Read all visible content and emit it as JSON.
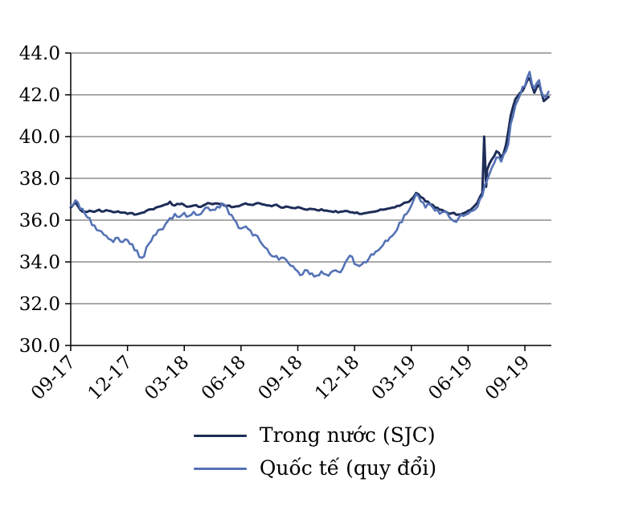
{
  "chart_data": {
    "type": "line",
    "title": "",
    "xlabel": "",
    "ylabel": "",
    "x_unit": "months since 2017-09",
    "xlim": [
      0,
      25.4
    ],
    "ylim": [
      30,
      44
    ],
    "y_ticks": [
      30,
      32,
      34,
      36,
      38,
      40,
      42,
      44
    ],
    "y_tick_labels": [
      "30.0",
      "32.0",
      "34.0",
      "36.0",
      "38.0",
      "40.0",
      "42.0",
      "44.0"
    ],
    "x_ticks": [
      0,
      3,
      6,
      9,
      12,
      15,
      18,
      21,
      24
    ],
    "x_tick_labels": [
      "09-17",
      "12-17",
      "03-18",
      "06-18",
      "09-18",
      "12-18",
      "03-19",
      "06-19",
      "09-19"
    ],
    "grid": "horizontal",
    "grid_color": "#555555",
    "axis_color": "#000000",
    "legend_position": "bottom",
    "series": [
      {
        "name": "Trong nước (SJC)",
        "color": "#1e2d58",
        "width": 3,
        "noise": 0.05,
        "points": [
          [
            0,
            36.6
          ],
          [
            0.25,
            36.85
          ],
          [
            0.5,
            36.5
          ],
          [
            0.75,
            36.4
          ],
          [
            1,
            36.45
          ],
          [
            1.25,
            36.4
          ],
          [
            1.5,
            36.5
          ],
          [
            1.75,
            36.42
          ],
          [
            2,
            36.45
          ],
          [
            2.25,
            36.38
          ],
          [
            2.5,
            36.42
          ],
          [
            2.75,
            36.36
          ],
          [
            3,
            36.3
          ],
          [
            3.25,
            36.34
          ],
          [
            3.5,
            36.28
          ],
          [
            3.75,
            36.35
          ],
          [
            4,
            36.45
          ],
          [
            4.25,
            36.52
          ],
          [
            4.5,
            36.6
          ],
          [
            4.75,
            36.66
          ],
          [
            5,
            36.75
          ],
          [
            5.25,
            36.88
          ],
          [
            5.5,
            36.7
          ],
          [
            5.75,
            36.76
          ],
          [
            6,
            36.72
          ],
          [
            6.25,
            36.65
          ],
          [
            6.5,
            36.7
          ],
          [
            6.75,
            36.64
          ],
          [
            7,
            36.7
          ],
          [
            7.25,
            36.82
          ],
          [
            7.5,
            36.76
          ],
          [
            7.75,
            36.8
          ],
          [
            8,
            36.78
          ],
          [
            8.25,
            36.68
          ],
          [
            8.5,
            36.62
          ],
          [
            8.75,
            36.66
          ],
          [
            9,
            36.72
          ],
          [
            9.25,
            36.8
          ],
          [
            9.5,
            36.74
          ],
          [
            9.75,
            36.78
          ],
          [
            10,
            36.8
          ],
          [
            10.25,
            36.74
          ],
          [
            10.5,
            36.7
          ],
          [
            10.75,
            36.72
          ],
          [
            11,
            36.66
          ],
          [
            11.25,
            36.6
          ],
          [
            11.5,
            36.63
          ],
          [
            11.75,
            36.58
          ],
          [
            12,
            36.62
          ],
          [
            12.25,
            36.55
          ],
          [
            12.5,
            36.5
          ],
          [
            12.75,
            36.53
          ],
          [
            13,
            36.48
          ],
          [
            13.25,
            36.52
          ],
          [
            13.5,
            36.46
          ],
          [
            13.75,
            36.42
          ],
          [
            14,
            36.44
          ],
          [
            14.25,
            36.4
          ],
          [
            14.5,
            36.44
          ],
          [
            14.75,
            36.38
          ],
          [
            15,
            36.34
          ],
          [
            15.25,
            36.3
          ],
          [
            15.5,
            36.33
          ],
          [
            15.75,
            36.37
          ],
          [
            16,
            36.4
          ],
          [
            16.25,
            36.45
          ],
          [
            16.5,
            36.5
          ],
          [
            16.75,
            36.55
          ],
          [
            17,
            36.6
          ],
          [
            17.25,
            36.68
          ],
          [
            17.5,
            36.75
          ],
          [
            17.75,
            36.85
          ],
          [
            18,
            37.0
          ],
          [
            18.25,
            37.3
          ],
          [
            18.5,
            37.1
          ],
          [
            18.75,
            36.9
          ],
          [
            19,
            36.75
          ],
          [
            19.25,
            36.6
          ],
          [
            19.5,
            36.5
          ],
          [
            19.75,
            36.42
          ],
          [
            20,
            36.3
          ],
          [
            20.25,
            36.35
          ],
          [
            20.5,
            36.27
          ],
          [
            20.75,
            36.33
          ],
          [
            21,
            36.45
          ],
          [
            21.25,
            36.6
          ],
          [
            21.5,
            36.85
          ],
          [
            21.75,
            37.3
          ],
          [
            21.85,
            40.0
          ],
          [
            21.95,
            37.6
          ],
          [
            22,
            38.4
          ],
          [
            22.25,
            38.9
          ],
          [
            22.5,
            39.3
          ],
          [
            22.75,
            39.0
          ],
          [
            23,
            39.6
          ],
          [
            23.25,
            41.0
          ],
          [
            23.5,
            41.8
          ],
          [
            23.75,
            42.1
          ],
          [
            24,
            42.4
          ],
          [
            24.25,
            42.8
          ],
          [
            24.5,
            42.1
          ],
          [
            24.75,
            42.5
          ],
          [
            25,
            41.7
          ],
          [
            25.25,
            41.9
          ]
        ]
      },
      {
        "name": "Quốc tế (quy đổi)",
        "color": "#5572b5",
        "width": 2.6,
        "noise": 0.1,
        "points": [
          [
            0,
            36.7
          ],
          [
            0.25,
            36.95
          ],
          [
            0.5,
            36.55
          ],
          [
            0.75,
            36.3
          ],
          [
            1,
            36.1
          ],
          [
            1.25,
            35.75
          ],
          [
            1.5,
            35.5
          ],
          [
            1.75,
            35.3
          ],
          [
            2,
            35.1
          ],
          [
            2.25,
            34.95
          ],
          [
            2.5,
            35.15
          ],
          [
            2.75,
            34.95
          ],
          [
            3,
            35.05
          ],
          [
            3.25,
            34.85
          ],
          [
            3.5,
            34.55
          ],
          [
            3.75,
            34.2
          ],
          [
            4,
            34.7
          ],
          [
            4.25,
            35.0
          ],
          [
            4.5,
            35.3
          ],
          [
            4.75,
            35.55
          ],
          [
            5,
            35.8
          ],
          [
            5.25,
            36.1
          ],
          [
            5.5,
            36.3
          ],
          [
            5.75,
            36.15
          ],
          [
            6,
            36.35
          ],
          [
            6.25,
            36.2
          ],
          [
            6.5,
            36.4
          ],
          [
            6.75,
            36.25
          ],
          [
            7,
            36.45
          ],
          [
            7.25,
            36.6
          ],
          [
            7.5,
            36.5
          ],
          [
            7.75,
            36.65
          ],
          [
            8,
            36.8
          ],
          [
            8.25,
            36.6
          ],
          [
            8.5,
            36.25
          ],
          [
            8.75,
            35.9
          ],
          [
            9,
            35.6
          ],
          [
            9.25,
            35.7
          ],
          [
            9.5,
            35.5
          ],
          [
            9.75,
            35.3
          ],
          [
            10,
            35.0
          ],
          [
            10.25,
            34.7
          ],
          [
            10.5,
            34.4
          ],
          [
            10.75,
            34.25
          ],
          [
            11,
            34.1
          ],
          [
            11.25,
            34.2
          ],
          [
            11.5,
            33.95
          ],
          [
            11.75,
            33.8
          ],
          [
            12,
            33.55
          ],
          [
            12.25,
            33.4
          ],
          [
            12.5,
            33.6
          ],
          [
            12.75,
            33.45
          ],
          [
            13,
            33.35
          ],
          [
            13.25,
            33.55
          ],
          [
            13.5,
            33.4
          ],
          [
            13.75,
            33.5
          ],
          [
            14,
            33.6
          ],
          [
            14.25,
            33.5
          ],
          [
            14.5,
            33.95
          ],
          [
            14.75,
            34.3
          ],
          [
            15,
            33.9
          ],
          [
            15.25,
            33.8
          ],
          [
            15.5,
            34.0
          ],
          [
            15.75,
            34.15
          ],
          [
            16,
            34.35
          ],
          [
            16.25,
            34.55
          ],
          [
            16.5,
            34.8
          ],
          [
            16.75,
            35.0
          ],
          [
            17,
            35.25
          ],
          [
            17.25,
            35.55
          ],
          [
            17.5,
            35.9
          ],
          [
            17.75,
            36.3
          ],
          [
            18,
            36.7
          ],
          [
            18.25,
            37.25
          ],
          [
            18.5,
            36.9
          ],
          [
            18.75,
            36.6
          ],
          [
            19,
            36.75
          ],
          [
            19.25,
            36.45
          ],
          [
            19.5,
            36.3
          ],
          [
            19.75,
            36.4
          ],
          [
            20,
            36.15
          ],
          [
            20.25,
            35.95
          ],
          [
            20.5,
            36.1
          ],
          [
            20.75,
            36.2
          ],
          [
            21,
            36.3
          ],
          [
            21.25,
            36.45
          ],
          [
            21.5,
            36.65
          ],
          [
            21.75,
            37.15
          ],
          [
            22,
            37.9
          ],
          [
            22.25,
            38.5
          ],
          [
            22.5,
            39.0
          ],
          [
            22.75,
            38.8
          ],
          [
            23,
            39.3
          ],
          [
            23.25,
            40.6
          ],
          [
            23.5,
            41.5
          ],
          [
            23.75,
            42.0
          ],
          [
            24,
            42.4
          ],
          [
            24.25,
            43.1
          ],
          [
            24.5,
            42.3
          ],
          [
            24.75,
            42.7
          ],
          [
            25,
            41.9
          ],
          [
            25.25,
            42.15
          ]
        ]
      }
    ]
  },
  "legend": {
    "items": [
      {
        "label": "Trong nước (SJC)"
      },
      {
        "label": "Quốc tế (quy đổi)"
      }
    ]
  }
}
